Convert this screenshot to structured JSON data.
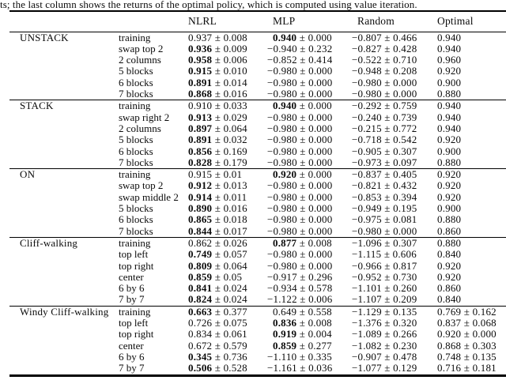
{
  "caption": "ts; the last column shows the returns of the optimal policy, which is computed using value iteration.",
  "table": {
    "pm_sign": "±",
    "columns": [
      "NLRL",
      "MLP",
      "Random",
      "Optimal"
    ],
    "groups": [
      {
        "name": "UNSTACK",
        "rows": [
          {
            "task": "training",
            "values": [
              {
                "mean": "0.937",
                "err": "0.008",
                "bold": false
              },
              {
                "mean": "0.940",
                "err": "0.000",
                "bold": true
              },
              {
                "mean": "−0.807",
                "err": "0.466",
                "bold": false
              },
              {
                "mean": "0.940",
                "bold": false
              }
            ]
          },
          {
            "task": "swap top 2",
            "values": [
              {
                "mean": "0.936",
                "err": "0.009",
                "bold": true
              },
              {
                "mean": "−0.940",
                "err": "0.232",
                "bold": false
              },
              {
                "mean": "−0.827",
                "err": "0.428",
                "bold": false
              },
              {
                "mean": "0.940",
                "bold": false
              }
            ]
          },
          {
            "task": "2 columns",
            "values": [
              {
                "mean": "0.958",
                "err": "0.006",
                "bold": true
              },
              {
                "mean": "−0.852",
                "err": "0.414",
                "bold": false
              },
              {
                "mean": "−0.522",
                "err": "0.710",
                "bold": false
              },
              {
                "mean": "0.960",
                "bold": false
              }
            ]
          },
          {
            "task": "5 blocks",
            "values": [
              {
                "mean": "0.915",
                "err": "0.010",
                "bold": true
              },
              {
                "mean": "−0.980",
                "err": "0.000",
                "bold": false
              },
              {
                "mean": "−0.948",
                "err": "0.208",
                "bold": false
              },
              {
                "mean": "0.920",
                "bold": false
              }
            ]
          },
          {
            "task": "6 blocks",
            "values": [
              {
                "mean": "0.891",
                "err": "0.014",
                "bold": true
              },
              {
                "mean": "−0.980",
                "err": "0.000",
                "bold": false
              },
              {
                "mean": "−0.980",
                "err": "0.000",
                "bold": false
              },
              {
                "mean": "0.900",
                "bold": false
              }
            ]
          },
          {
            "task": "7 blocks",
            "values": [
              {
                "mean": "0.868",
                "err": "0.016",
                "bold": true
              },
              {
                "mean": "−0.980",
                "err": "0.000",
                "bold": false
              },
              {
                "mean": "−0.980",
                "err": "0.000",
                "bold": false
              },
              {
                "mean": "0.880",
                "bold": false
              }
            ]
          }
        ]
      },
      {
        "name": "STACK",
        "rows": [
          {
            "task": "training",
            "values": [
              {
                "mean": "0.910",
                "err": "0.033",
                "bold": false
              },
              {
                "mean": "0.940",
                "err": "0.000",
                "bold": true
              },
              {
                "mean": "−0.292",
                "err": "0.759",
                "bold": false
              },
              {
                "mean": "0.940",
                "bold": false
              }
            ]
          },
          {
            "task": "swap right 2",
            "values": [
              {
                "mean": "0.913",
                "err": "0.029",
                "bold": true
              },
              {
                "mean": "−0.980",
                "err": "0.000",
                "bold": false
              },
              {
                "mean": "−0.240",
                "err": "0.739",
                "bold": false
              },
              {
                "mean": "0.940",
                "bold": false
              }
            ]
          },
          {
            "task": "2 columns",
            "values": [
              {
                "mean": "0.897",
                "err": "0.064",
                "bold": true
              },
              {
                "mean": "−0.980",
                "err": "0.000",
                "bold": false
              },
              {
                "mean": "−0.215",
                "err": "0.772",
                "bold": false
              },
              {
                "mean": "0.940",
                "bold": false
              }
            ]
          },
          {
            "task": "5 blocks",
            "values": [
              {
                "mean": "0.891",
                "err": "0.032",
                "bold": true
              },
              {
                "mean": "−0.980",
                "err": "0.000",
                "bold": false
              },
              {
                "mean": "−0.718",
                "err": "0.542",
                "bold": false
              },
              {
                "mean": "0.920",
                "bold": false
              }
            ]
          },
          {
            "task": "6 blocks",
            "values": [
              {
                "mean": "0.856",
                "err": "0.169",
                "bold": true
              },
              {
                "mean": "−0.980",
                "err": "0.000",
                "bold": false
              },
              {
                "mean": "−0.905",
                "err": "0.307",
                "bold": false
              },
              {
                "mean": "0.900",
                "bold": false
              }
            ]
          },
          {
            "task": "7 blocks",
            "values": [
              {
                "mean": "0.828",
                "err": "0.179",
                "bold": true
              },
              {
                "mean": "−0.980",
                "err": "0.000",
                "bold": false
              },
              {
                "mean": "−0.973",
                "err": "0.097",
                "bold": false
              },
              {
                "mean": "0.880",
                "bold": false
              }
            ]
          }
        ]
      },
      {
        "name": "ON",
        "rows": [
          {
            "task": "training",
            "values": [
              {
                "mean": "0.915",
                "err": "0.01",
                "bold": false
              },
              {
                "mean": "0.920",
                "err": "0.000",
                "bold": true
              },
              {
                "mean": "−0.837",
                "err": "0.405",
                "bold": false
              },
              {
                "mean": "0.920",
                "bold": false
              }
            ]
          },
          {
            "task": "swap top 2",
            "values": [
              {
                "mean": "0.912",
                "err": "0.013",
                "bold": true
              },
              {
                "mean": "−0.980",
                "err": "0.000",
                "bold": false
              },
              {
                "mean": "−0.821",
                "err": "0.432",
                "bold": false
              },
              {
                "mean": "0.920",
                "bold": false
              }
            ]
          },
          {
            "task": "swap middle 2",
            "values": [
              {
                "mean": "0.914",
                "err": "0.011",
                "bold": true
              },
              {
                "mean": "−0.980",
                "err": "0.000",
                "bold": false
              },
              {
                "mean": "−0.853",
                "err": "0.394",
                "bold": false
              },
              {
                "mean": "0.920",
                "bold": false
              }
            ]
          },
          {
            "task": "5 blocks",
            "values": [
              {
                "mean": "0.890",
                "err": "0.016",
                "bold": true
              },
              {
                "mean": "−0.980",
                "err": "0.000",
                "bold": false
              },
              {
                "mean": "−0.949",
                "err": "0.195",
                "bold": false
              },
              {
                "mean": "0.900",
                "bold": false
              }
            ]
          },
          {
            "task": "6 blocks",
            "values": [
              {
                "mean": "0.865",
                "err": "0.018",
                "bold": true
              },
              {
                "mean": "−0.980",
                "err": "0.000",
                "bold": false
              },
              {
                "mean": "−0.975",
                "err": "0.081",
                "bold": false
              },
              {
                "mean": "0.880",
                "bold": false
              }
            ]
          },
          {
            "task": "7 blocks",
            "values": [
              {
                "mean": "0.844",
                "err": "0.017",
                "bold": true
              },
              {
                "mean": "−0.980",
                "err": "0.000",
                "bold": false
              },
              {
                "mean": "−0.980",
                "err": "0.000",
                "bold": false
              },
              {
                "mean": "0.860",
                "bold": false
              }
            ]
          }
        ]
      },
      {
        "name": "Cliff-walking",
        "rows": [
          {
            "task": "training",
            "values": [
              {
                "mean": "0.862",
                "err": "0.026",
                "bold": false
              },
              {
                "mean": "0.877",
                "err": "0.008",
                "bold": true
              },
              {
                "mean": "−1.096",
                "err": "0.307",
                "bold": false
              },
              {
                "mean": "0.880",
                "bold": false
              }
            ]
          },
          {
            "task": "top left",
            "values": [
              {
                "mean": "0.749",
                "err": "0.057",
                "bold": true
              },
              {
                "mean": "−0.980",
                "err": "0.000",
                "bold": false
              },
              {
                "mean": "−1.115",
                "err": "0.606",
                "bold": false
              },
              {
                "mean": "0.840",
                "bold": false
              }
            ]
          },
          {
            "task": "top right",
            "values": [
              {
                "mean": "0.809",
                "err": "0.064",
                "bold": true
              },
              {
                "mean": "−0.980",
                "err": "0.000",
                "bold": false
              },
              {
                "mean": "−0.966",
                "err": "0.817",
                "bold": false
              },
              {
                "mean": "0.920",
                "bold": false
              }
            ]
          },
          {
            "task": "center",
            "values": [
              {
                "mean": "0.859",
                "err": "0.05",
                "bold": true
              },
              {
                "mean": "−0.917",
                "err": "0.296",
                "bold": false
              },
              {
                "mean": "−0.952",
                "err": "0.730",
                "bold": false
              },
              {
                "mean": "0.920",
                "bold": false
              }
            ]
          },
          {
            "task": "6 by 6",
            "values": [
              {
                "mean": "0.841",
                "err": "0.024",
                "bold": true
              },
              {
                "mean": "−0.934",
                "err": "0.578",
                "bold": false
              },
              {
                "mean": "−1.101",
                "err": "0.260",
                "bold": false
              },
              {
                "mean": "0.860",
                "bold": false
              }
            ]
          },
          {
            "task": "7 by 7",
            "values": [
              {
                "mean": "0.824",
                "err": "0.024",
                "bold": true
              },
              {
                "mean": "−1.122",
                "err": "0.006",
                "bold": false
              },
              {
                "mean": "−1.107",
                "err": "0.209",
                "bold": false
              },
              {
                "mean": "0.840",
                "bold": false
              }
            ]
          }
        ]
      },
      {
        "name": "Windy Cliff-walking",
        "rows": [
          {
            "task": "training",
            "values": [
              {
                "mean": "0.663",
                "err": "0.377",
                "bold": true
              },
              {
                "mean": "0.649",
                "err": "0.558",
                "bold": false
              },
              {
                "mean": "−1.129",
                "err": "0.135",
                "bold": false
              },
              {
                "mean": "0.769",
                "err": "0.162",
                "bold": false
              }
            ]
          },
          {
            "task": "top left",
            "values": [
              {
                "mean": "0.726",
                "err": "0.075",
                "bold": false
              },
              {
                "mean": "0.836",
                "err": "0.008",
                "bold": true
              },
              {
                "mean": "−1.376",
                "err": "0.320",
                "bold": false
              },
              {
                "mean": "0.837",
                "err": "0.068",
                "bold": false
              }
            ]
          },
          {
            "task": "top right",
            "values": [
              {
                "mean": "0.834",
                "err": "0.061",
                "bold": false
              },
              {
                "mean": "0.919",
                "err": "0.004",
                "bold": true
              },
              {
                "mean": "−1.089",
                "err": "0.266",
                "bold": false
              },
              {
                "mean": "0.920",
                "err": "0.000",
                "bold": false
              }
            ]
          },
          {
            "task": "center",
            "values": [
              {
                "mean": "0.672",
                "err": "0.579",
                "bold": false
              },
              {
                "mean": "0.859",
                "err": "0.277",
                "bold": true
              },
              {
                "mean": "−1.082",
                "err": "0.230",
                "bold": false
              },
              {
                "mean": "0.868",
                "err": "0.303",
                "bold": false
              }
            ]
          },
          {
            "task": "6 by 6",
            "values": [
              {
                "mean": "0.345",
                "err": "0.736",
                "bold": true
              },
              {
                "mean": "−1.110",
                "err": "0.335",
                "bold": false
              },
              {
                "mean": "−0.907",
                "err": "0.478",
                "bold": false
              },
              {
                "mean": "0.748",
                "err": "0.135",
                "bold": false
              }
            ]
          },
          {
            "task": "7 by 7",
            "values": [
              {
                "mean": "0.506",
                "err": "0.528",
                "bold": true
              },
              {
                "mean": "−1.161",
                "err": "0.036",
                "bold": false
              },
              {
                "mean": "−1.077",
                "err": "0.129",
                "bold": false
              },
              {
                "mean": "0.716",
                "err": "0.181",
                "bold": false
              }
            ]
          }
        ]
      }
    ]
  }
}
